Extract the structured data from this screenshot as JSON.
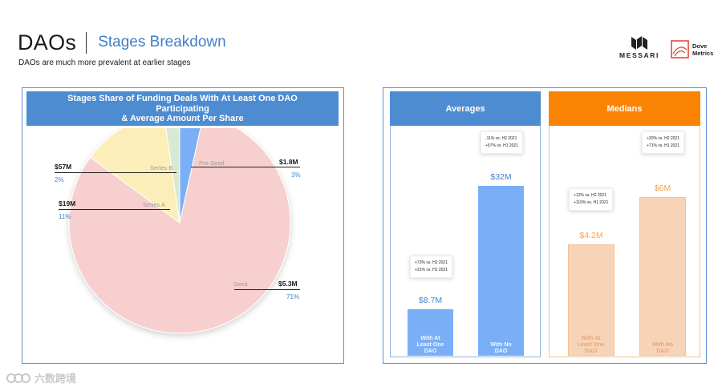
{
  "header": {
    "title": "DAOs",
    "section": "Stages Breakdown",
    "subtitle": "DAOs are much more prevalent at earlier stages"
  },
  "logos": {
    "messari": "MESSARI",
    "dove_line1": "Dove",
    "dove_line2": "Metrics"
  },
  "watermark": "六数跨境",
  "chart_data": [
    {
      "type": "pie",
      "title": "Stages Share of Funding Deals With At Least One DAO Participating & Average Amount Per Share",
      "title_lines": [
        "Stages Share of Funding Deals With At Least One DAO",
        "Participating",
        "& Average Amount Per Share"
      ],
      "slices": [
        {
          "stage": "Pre-Seed",
          "share": 3,
          "pct_label": "3%",
          "amount": "$1.8M",
          "color": "#7aaff8"
        },
        {
          "stage": "Seed",
          "share": 71,
          "pct_label": "71%",
          "amount": "$5.3M",
          "color": "#f7cfcf"
        },
        {
          "stage": "Series A",
          "share": 11,
          "pct_label": "11%",
          "amount": "$19M",
          "color": "#fbeeb9"
        },
        {
          "stage": "Series B",
          "share": 2,
          "pct_label": "2%",
          "amount": "$57M",
          "color": "#d8e9d4"
        }
      ]
    },
    {
      "type": "bar",
      "title": "Averages",
      "color": "#7aaff8",
      "ylim": [
        0,
        36
      ],
      "categories": [
        "With At Least One DAO",
        "With No DAO"
      ],
      "category_lines": [
        [
          "With At",
          "Least One",
          "DAO"
        ],
        [
          "With No",
          "DAO"
        ]
      ],
      "values": [
        8.7,
        32
      ],
      "value_labels": [
        "$8.7M",
        "$32M"
      ],
      "notes": [
        [
          "+73% vs. H2 2021",
          "+31% vs. H1 2021"
        ],
        [
          "-11% vs. H2 2021",
          "+57% vs. H1 2021"
        ]
      ]
    },
    {
      "type": "bar",
      "title": "Medians",
      "color": "#f7d4b8",
      "ylim": [
        0,
        7.2
      ],
      "categories": [
        "With At Least One DAO",
        "With No DAO"
      ],
      "category_lines": [
        [
          "With At",
          "Least One",
          "DAO"
        ],
        [
          "With No",
          "DAO"
        ]
      ],
      "values": [
        4.2,
        6
      ],
      "value_labels": [
        "$4.2M",
        "$6M"
      ],
      "notes": [
        [
          "+12% vs. H2 2021",
          "+110% vs. H1 2021"
        ],
        [
          "+20% vs. H2 2021",
          "+71% vs. H1 2021"
        ]
      ]
    }
  ]
}
